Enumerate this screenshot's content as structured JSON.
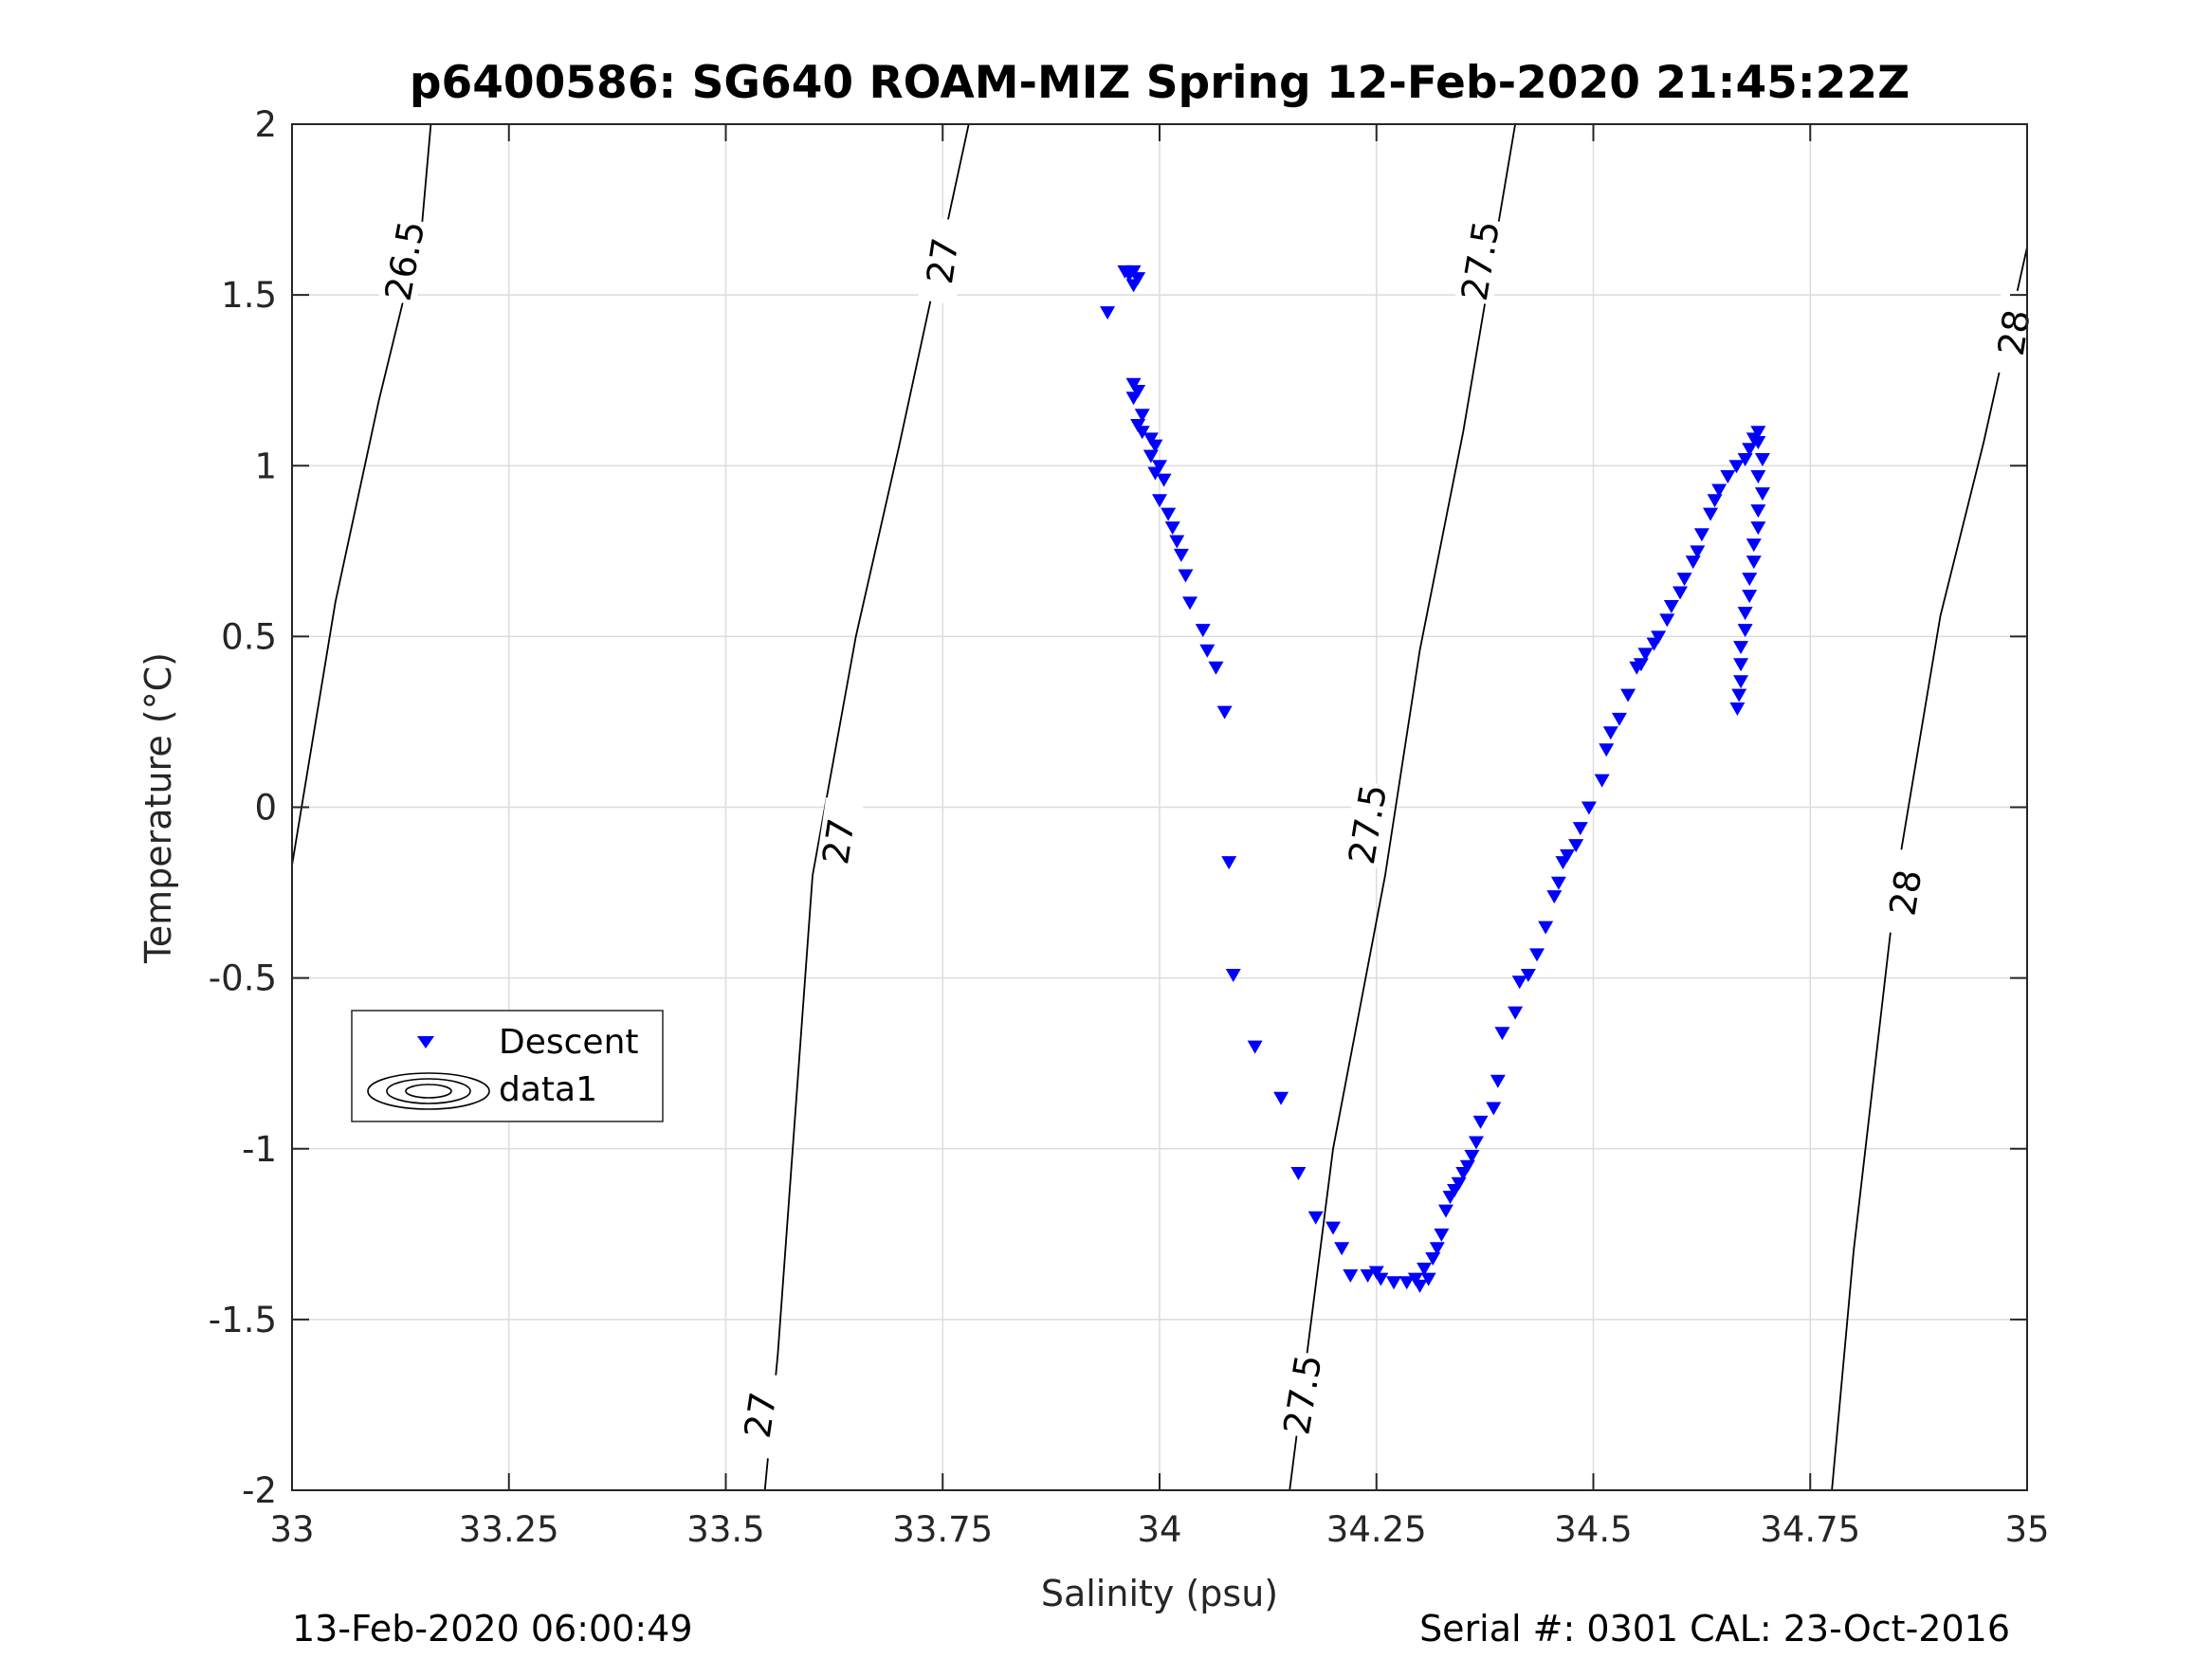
{
  "colors": {
    "descent": "#0000ff",
    "contour": "#000000",
    "grid": "#dcdcdc",
    "axis": "#262626"
  },
  "footer": {
    "left": "13-Feb-2020 06:00:49",
    "right": "Serial #: 0301  CAL: 23-Oct-2016"
  },
  "chart_data": {
    "type": "scatter",
    "title": "p6400586: SG640 ROAM-MIZ Spring 12-Feb-2020 21:45:22Z",
    "xlabel": "Salinity (psu)",
    "ylabel": "Temperature (°C)",
    "xlim": [
      33,
      35
    ],
    "ylim": [
      -2,
      2
    ],
    "xticks": [
      33,
      33.25,
      33.5,
      33.75,
      34,
      34.25,
      34.5,
      34.75,
      35
    ],
    "xtick_labels": [
      "33",
      "33.25",
      "33.5",
      "33.75",
      "34",
      "34.25",
      "34.5",
      "34.75",
      "35"
    ],
    "yticks": [
      -2,
      -1.5,
      -1,
      -0.5,
      0,
      0.5,
      1,
      1.5,
      2
    ],
    "ytick_labels": [
      "-2",
      "-1.5",
      "-1",
      "-0.5",
      "0",
      "0.5",
      "1",
      "1.5",
      "2"
    ],
    "grid": true,
    "legend_position": "left",
    "legend": [
      "Descent",
      "data1"
    ],
    "series": [
      {
        "name": "Descent",
        "marker": "triangle-down",
        "x": [
          33.96,
          33.97,
          33.965,
          33.975,
          33.97,
          33.94,
          33.97,
          33.975,
          33.97,
          33.98,
          33.975,
          33.98,
          33.99,
          33.995,
          33.99,
          34.0,
          33.995,
          34.005,
          34.0,
          34.01,
          34.015,
          34.02,
          34.025,
          34.03,
          34.035,
          34.05,
          34.055,
          34.065,
          34.075,
          34.08,
          34.085,
          34.11,
          34.14,
          34.16,
          34.18,
          34.2,
          34.21,
          34.22,
          34.24,
          34.25,
          34.255,
          34.27,
          34.285,
          34.295,
          34.3,
          34.31,
          34.305,
          34.315,
          34.32,
          34.325,
          34.33,
          34.335,
          34.34,
          34.345,
          34.35,
          34.355,
          34.36,
          34.365,
          34.37,
          34.385,
          34.39,
          34.395,
          34.41,
          34.415,
          34.425,
          34.435,
          34.445,
          34.455,
          34.46,
          34.465,
          34.47,
          34.48,
          34.485,
          34.495,
          34.51,
          34.515,
          34.52,
          34.53,
          34.54,
          34.55,
          34.555,
          34.56,
          34.57,
          34.575,
          34.585,
          34.59,
          34.6,
          34.605,
          34.615,
          34.62,
          34.625,
          34.635,
          34.64,
          34.645,
          34.655,
          34.665,
          34.675,
          34.68,
          34.685,
          34.69,
          34.69,
          34.695,
          34.69,
          34.695,
          34.69,
          34.69,
          34.685,
          34.685,
          34.68,
          34.68,
          34.675,
          34.675,
          34.67,
          34.67,
          34.67,
          34.668,
          34.666
        ],
        "y": [
          1.57,
          1.57,
          1.56,
          1.55,
          1.53,
          1.45,
          1.24,
          1.22,
          1.2,
          1.15,
          1.12,
          1.1,
          1.08,
          1.06,
          1.03,
          1.0,
          0.98,
          0.96,
          0.9,
          0.86,
          0.82,
          0.78,
          0.74,
          0.68,
          0.6,
          0.52,
          0.46,
          0.41,
          0.28,
          -0.16,
          -0.49,
          -0.7,
          -0.85,
          -1.07,
          -1.2,
          -1.23,
          -1.29,
          -1.37,
          -1.37,
          -1.36,
          -1.38,
          -1.39,
          -1.39,
          -1.38,
          -1.4,
          -1.38,
          -1.35,
          -1.32,
          -1.29,
          -1.25,
          -1.18,
          -1.14,
          -1.12,
          -1.1,
          -1.07,
          -1.05,
          -1.02,
          -0.98,
          -0.92,
          -0.88,
          -0.8,
          -0.66,
          -0.6,
          -0.51,
          -0.49,
          -0.43,
          -0.35,
          -0.26,
          -0.22,
          -0.16,
          -0.14,
          -0.11,
          -0.06,
          -0.0,
          0.08,
          0.17,
          0.22,
          0.26,
          0.33,
          0.41,
          0.42,
          0.45,
          0.48,
          0.5,
          0.55,
          0.59,
          0.63,
          0.67,
          0.72,
          0.75,
          0.8,
          0.86,
          0.9,
          0.93,
          0.97,
          1.0,
          1.02,
          1.05,
          1.08,
          1.1,
          1.07,
          1.02,
          0.97,
          0.92,
          0.87,
          0.82,
          0.77,
          0.72,
          0.67,
          0.62,
          0.57,
          0.52,
          0.47,
          0.42,
          0.37,
          0.33,
          0.29
        ]
      }
    ],
    "density_contours": [
      {
        "label": "26.5",
        "x": [
          33.0,
          33.05,
          33.1,
          33.15,
          33.16
        ],
        "y": [
          -0.17,
          0.6,
          1.19,
          1.71,
          2.0
        ],
        "label_positions": [
          {
            "x": 33.13,
            "y": 1.6
          }
        ]
      },
      {
        "label": "27",
        "x": [
          33.545,
          33.56,
          33.6,
          33.65,
          33.7,
          33.78
        ],
        "y": [
          -2.0,
          -1.6,
          -0.2,
          0.5,
          1.06,
          2.0
        ],
        "label_positions": [
          {
            "x": 33.54,
            "y": -1.78
          },
          {
            "x": 33.63,
            "y": -0.1
          },
          {
            "x": 33.75,
            "y": 1.6
          }
        ]
      },
      {
        "label": "27.5",
        "x": [
          34.15,
          34.2,
          34.26,
          34.3,
          34.35,
          34.41
        ],
        "y": [
          -2.0,
          -1.0,
          -0.2,
          0.46,
          1.1,
          2.0
        ],
        "label_positions": [
          {
            "x": 34.165,
            "y": -1.72
          },
          {
            "x": 34.24,
            "y": -0.05
          },
          {
            "x": 34.37,
            "y": 1.6
          }
        ]
      },
      {
        "label": "28",
        "x": [
          34.775,
          34.8,
          34.85,
          34.9,
          34.95,
          35.0
        ],
        "y": [
          -2.0,
          -1.3,
          -0.2,
          0.56,
          1.07,
          1.64
        ],
        "label_positions": [
          {
            "x": 34.86,
            "y": -0.25
          },
          {
            "x": 34.985,
            "y": 1.39
          }
        ]
      }
    ]
  }
}
